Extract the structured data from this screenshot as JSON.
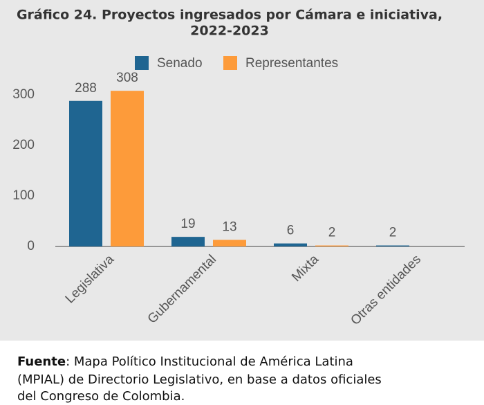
{
  "chart_data": {
    "type": "bar",
    "title": [
      "Gráfico 24. Proyectos ingresados por Cámara e iniciativa,",
      "2022-2023"
    ],
    "categories": [
      "Legislativa",
      "Gubernamental",
      "Mixta",
      "Otras entidades"
    ],
    "series": [
      {
        "name": "Senado",
        "color": "#1f6591",
        "values": [
          288,
          19,
          6,
          2
        ]
      },
      {
        "name": "Representantes",
        "color": "#fd9b3a",
        "values": [
          308,
          13,
          2,
          null
        ]
      }
    ],
    "ylim": [
      0,
      300
    ],
    "yticks": [
      0,
      100,
      200,
      300
    ],
    "grid": false,
    "legend": "top"
  },
  "source": {
    "label": "Fuente",
    "lines": [
      ": Mapa Político Institucional de América Latina",
      "(MPIAL) de Directorio Legislativo, en base a datos oficiales",
      "del Congreso de Colombia."
    ]
  }
}
